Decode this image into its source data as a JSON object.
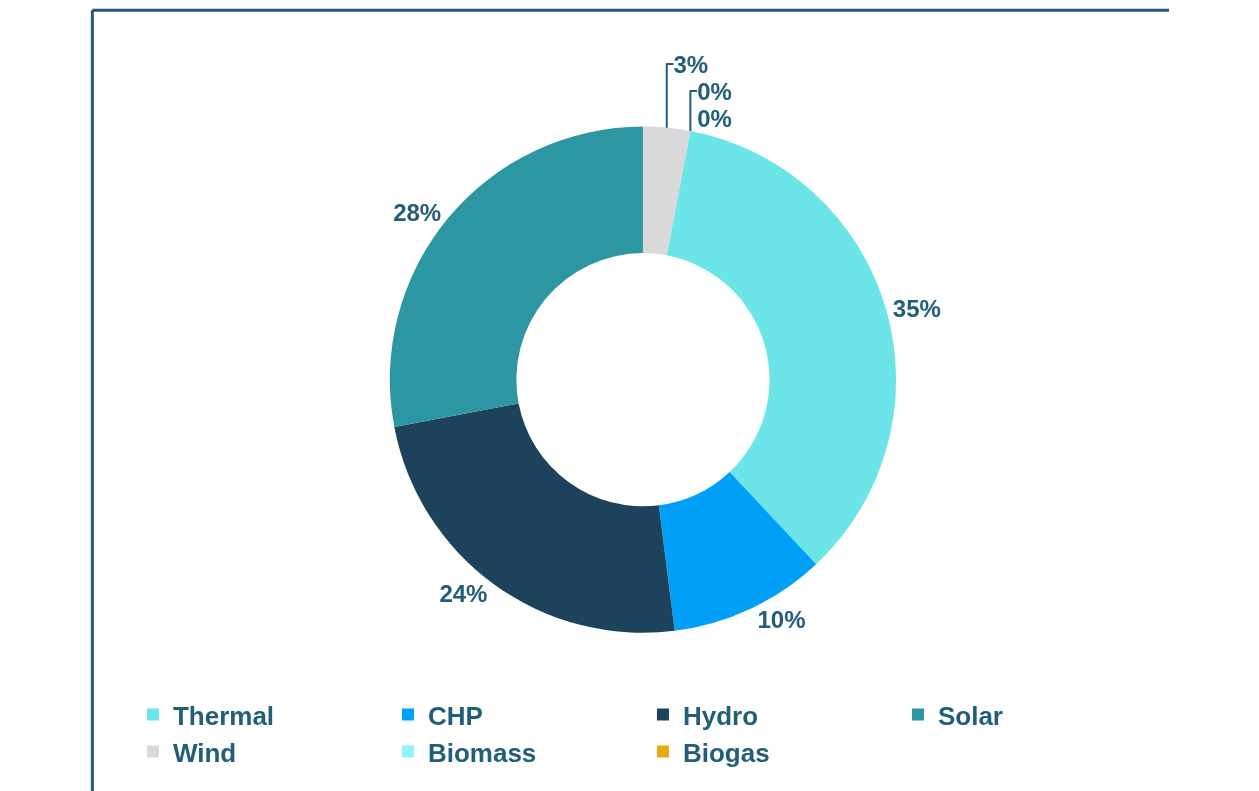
{
  "chart_data": {
    "type": "donut",
    "categories": [
      "Thermal",
      "CHP",
      "Hydro",
      "Solar",
      "Wind",
      "Biomass",
      "Biogas"
    ],
    "values": [
      35,
      10,
      24,
      28,
      3,
      0,
      0
    ],
    "value_labels": [
      "35%",
      "10%",
      "24%",
      "28%",
      "3%",
      "0%",
      "0%"
    ],
    "colors": [
      "#6ce5e8",
      "#00a0f9",
      "#1d435c",
      "#2d96a3",
      "#d9d9d9",
      "#8ef4f4",
      "#e8a80f"
    ],
    "legend": "bottom"
  }
}
